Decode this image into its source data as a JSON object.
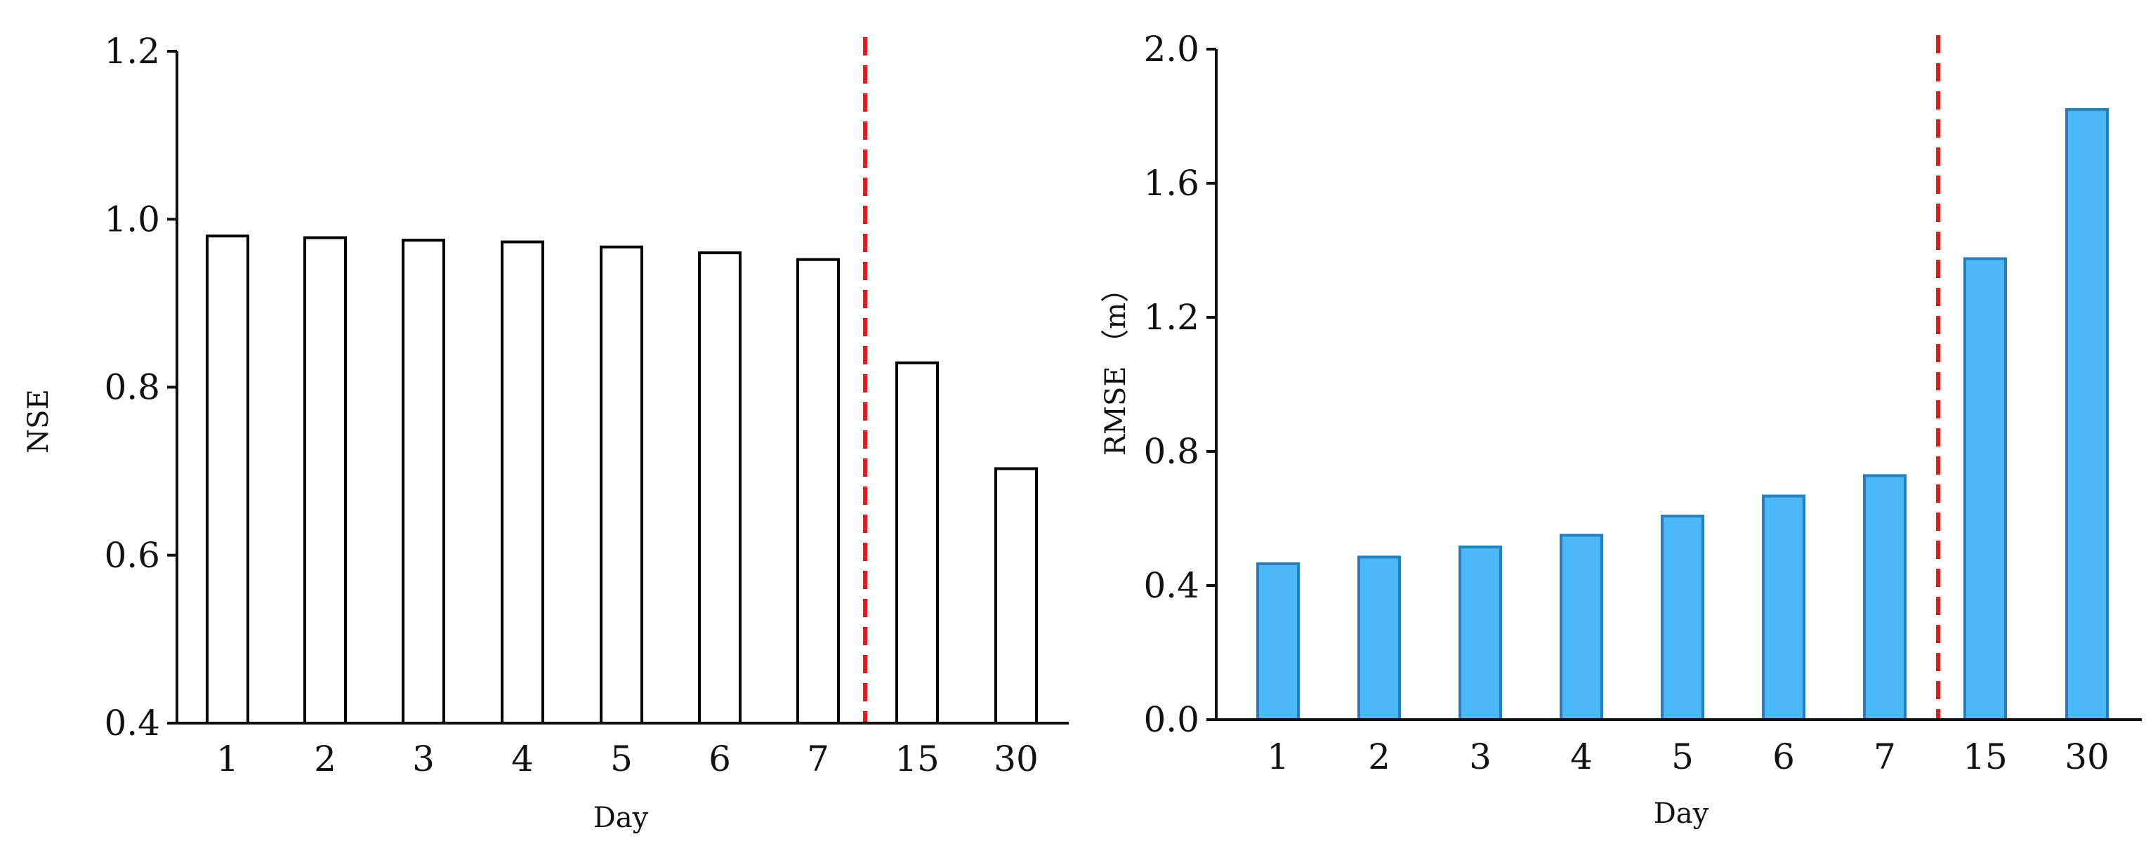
{
  "chart_data": [
    {
      "type": "bar",
      "categories": [
        "1",
        "2",
        "3",
        "4",
        "5",
        "6",
        "7",
        "15",
        "30"
      ],
      "values": [
        0.98,
        0.978,
        0.975,
        0.973,
        0.967,
        0.96,
        0.952,
        0.829,
        0.703
      ],
      "xlabel": "Day",
      "ylabel": "NSE",
      "ylim": [
        0.4,
        1.2
      ],
      "yticks": [
        "0.4",
        "0.6",
        "0.8",
        "1.0",
        "1.2"
      ],
      "bar_fill": "#ffffff",
      "bar_stroke": "#000000",
      "divider_after_category": "7",
      "divider_color": "#e8191d",
      "grid": false
    },
    {
      "type": "bar",
      "categories": [
        "1",
        "2",
        "3",
        "4",
        "5",
        "6",
        "7",
        "15",
        "30"
      ],
      "values": [
        0.465,
        0.485,
        0.515,
        0.55,
        0.607,
        0.667,
        0.728,
        1.375,
        1.82
      ],
      "xlabel": "Day",
      "ylabel": "RMSE （m）",
      "ylim": [
        0.0,
        2.0
      ],
      "yticks": [
        "0.0",
        "0.4",
        "0.8",
        "1.2",
        "1.6",
        "2.0"
      ],
      "bar_fill": "#4cb8f7",
      "bar_stroke": "#2a7fb8",
      "divider_after_category": "7",
      "divider_color": "#e8191d",
      "grid": false
    }
  ]
}
